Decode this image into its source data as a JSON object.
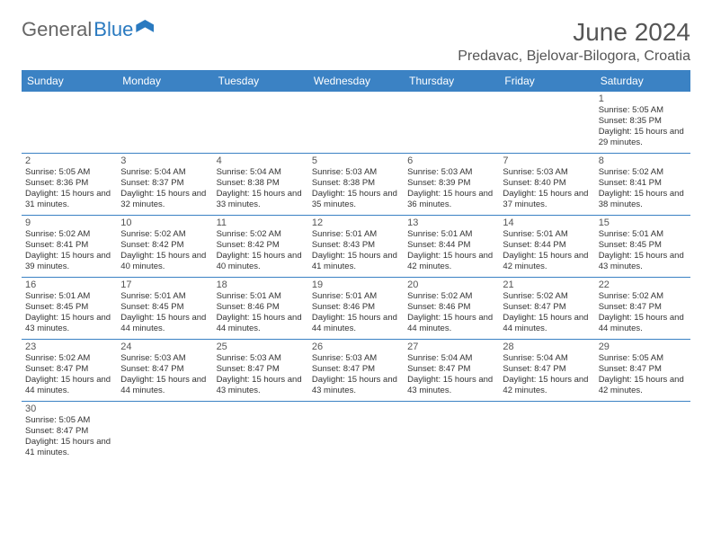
{
  "logo": {
    "part1": "General",
    "part2": "Blue"
  },
  "title": "June 2024",
  "location": "Predavac, Bjelovar-Bilogora, Croatia",
  "headerColor": "#3b82c4",
  "dayNames": [
    "Sunday",
    "Monday",
    "Tuesday",
    "Wednesday",
    "Thursday",
    "Friday",
    "Saturday"
  ],
  "weeks": [
    [
      null,
      null,
      null,
      null,
      null,
      null,
      {
        "n": "1",
        "sr": "5:05 AM",
        "ss": "8:35 PM",
        "dl": "15 hours and 29 minutes."
      }
    ],
    [
      {
        "n": "2",
        "sr": "5:05 AM",
        "ss": "8:36 PM",
        "dl": "15 hours and 31 minutes."
      },
      {
        "n": "3",
        "sr": "5:04 AM",
        "ss": "8:37 PM",
        "dl": "15 hours and 32 minutes."
      },
      {
        "n": "4",
        "sr": "5:04 AM",
        "ss": "8:38 PM",
        "dl": "15 hours and 33 minutes."
      },
      {
        "n": "5",
        "sr": "5:03 AM",
        "ss": "8:38 PM",
        "dl": "15 hours and 35 minutes."
      },
      {
        "n": "6",
        "sr": "5:03 AM",
        "ss": "8:39 PM",
        "dl": "15 hours and 36 minutes."
      },
      {
        "n": "7",
        "sr": "5:03 AM",
        "ss": "8:40 PM",
        "dl": "15 hours and 37 minutes."
      },
      {
        "n": "8",
        "sr": "5:02 AM",
        "ss": "8:41 PM",
        "dl": "15 hours and 38 minutes."
      }
    ],
    [
      {
        "n": "9",
        "sr": "5:02 AM",
        "ss": "8:41 PM",
        "dl": "15 hours and 39 minutes."
      },
      {
        "n": "10",
        "sr": "5:02 AM",
        "ss": "8:42 PM",
        "dl": "15 hours and 40 minutes."
      },
      {
        "n": "11",
        "sr": "5:02 AM",
        "ss": "8:42 PM",
        "dl": "15 hours and 40 minutes."
      },
      {
        "n": "12",
        "sr": "5:01 AM",
        "ss": "8:43 PM",
        "dl": "15 hours and 41 minutes."
      },
      {
        "n": "13",
        "sr": "5:01 AM",
        "ss": "8:44 PM",
        "dl": "15 hours and 42 minutes."
      },
      {
        "n": "14",
        "sr": "5:01 AM",
        "ss": "8:44 PM",
        "dl": "15 hours and 42 minutes."
      },
      {
        "n": "15",
        "sr": "5:01 AM",
        "ss": "8:45 PM",
        "dl": "15 hours and 43 minutes."
      }
    ],
    [
      {
        "n": "16",
        "sr": "5:01 AM",
        "ss": "8:45 PM",
        "dl": "15 hours and 43 minutes."
      },
      {
        "n": "17",
        "sr": "5:01 AM",
        "ss": "8:45 PM",
        "dl": "15 hours and 44 minutes."
      },
      {
        "n": "18",
        "sr": "5:01 AM",
        "ss": "8:46 PM",
        "dl": "15 hours and 44 minutes."
      },
      {
        "n": "19",
        "sr": "5:01 AM",
        "ss": "8:46 PM",
        "dl": "15 hours and 44 minutes."
      },
      {
        "n": "20",
        "sr": "5:02 AM",
        "ss": "8:46 PM",
        "dl": "15 hours and 44 minutes."
      },
      {
        "n": "21",
        "sr": "5:02 AM",
        "ss": "8:47 PM",
        "dl": "15 hours and 44 minutes."
      },
      {
        "n": "22",
        "sr": "5:02 AM",
        "ss": "8:47 PM",
        "dl": "15 hours and 44 minutes."
      }
    ],
    [
      {
        "n": "23",
        "sr": "5:02 AM",
        "ss": "8:47 PM",
        "dl": "15 hours and 44 minutes."
      },
      {
        "n": "24",
        "sr": "5:03 AM",
        "ss": "8:47 PM",
        "dl": "15 hours and 44 minutes."
      },
      {
        "n": "25",
        "sr": "5:03 AM",
        "ss": "8:47 PM",
        "dl": "15 hours and 43 minutes."
      },
      {
        "n": "26",
        "sr": "5:03 AM",
        "ss": "8:47 PM",
        "dl": "15 hours and 43 minutes."
      },
      {
        "n": "27",
        "sr": "5:04 AM",
        "ss": "8:47 PM",
        "dl": "15 hours and 43 minutes."
      },
      {
        "n": "28",
        "sr": "5:04 AM",
        "ss": "8:47 PM",
        "dl": "15 hours and 42 minutes."
      },
      {
        "n": "29",
        "sr": "5:05 AM",
        "ss": "8:47 PM",
        "dl": "15 hours and 42 minutes."
      }
    ],
    [
      {
        "n": "30",
        "sr": "5:05 AM",
        "ss": "8:47 PM",
        "dl": "15 hours and 41 minutes."
      },
      null,
      null,
      null,
      null,
      null,
      null
    ]
  ],
  "labels": {
    "sunrise": "Sunrise:",
    "sunset": "Sunset:",
    "daylight": "Daylight:"
  }
}
